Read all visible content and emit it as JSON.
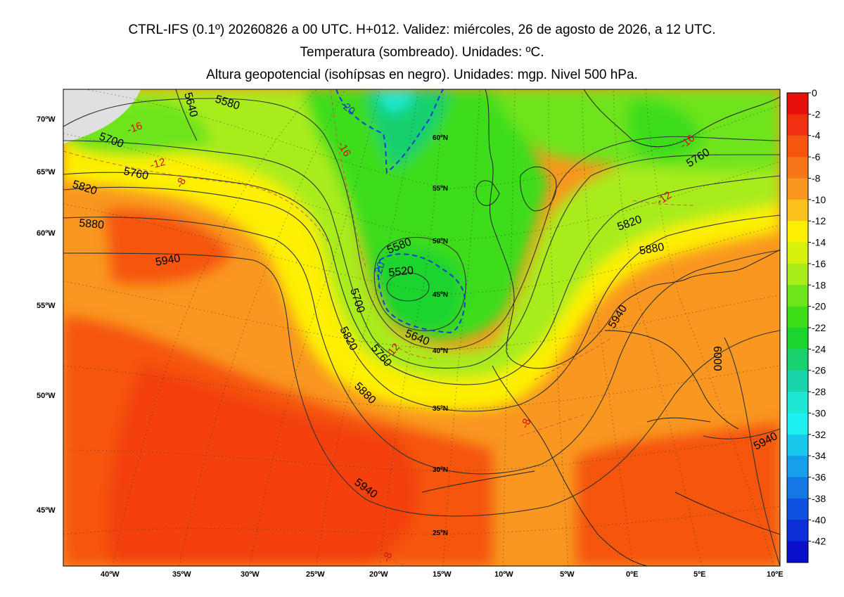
{
  "title": {
    "line1": "CTRL-IFS (0.1º) 20260826 a 00 UTC. H+012. Validez: miércoles, 26 de agosto de 2026, a 12 UTC.",
    "line2": "Temperatura (sombreado). Unidades: ºC.",
    "line3": "Altura geopotencial (isohípsas en negro). Unidades: mgp. Nivel 500 hPa."
  },
  "left_labels": [
    "70ºW",
    "65ºW",
    "60ºW",
    "55ºW",
    "50ºW",
    "45ºW"
  ],
  "bottom_labels": [
    "40ºW",
    "35ºW",
    "30ºW",
    "25ºW",
    "20ºW",
    "15ºW",
    "10ºW",
    "5ºW",
    "0ºE",
    "5ºE",
    "10ºE"
  ],
  "lat_labels": [
    "60ºN",
    "55ºN",
    "50ºN",
    "45ºN",
    "40ºN",
    "35ºN",
    "30ºN",
    "25ºN"
  ],
  "geopotential_labels": [
    "5580",
    "5640",
    "5700",
    "5760",
    "5820",
    "5880",
    "5940",
    "5520",
    "5580",
    "5700",
    "5820",
    "5760",
    "5640",
    "5880",
    "5940",
    "5760",
    "5820",
    "5880",
    "5940",
    "6000",
    "5940"
  ],
  "temperature_labels": [
    "-16",
    "-12",
    "-8",
    "-20",
    "-16",
    "-16",
    "-12",
    "-12",
    "-20",
    "-8",
    "-8"
  ],
  "colorbar": {
    "labels": [
      "0",
      "-2",
      "-4",
      "-6",
      "-8",
      "-10",
      "-12",
      "-14",
      "-16",
      "-18",
      "-20",
      "-22",
      "-24",
      "-26",
      "-28",
      "-30",
      "-32",
      "-34",
      "-36",
      "-38",
      "-40",
      "-42"
    ],
    "colors": [
      "#e8100a",
      "#f03010",
      "#f5550f",
      "#f7761a",
      "#f99720",
      "#fbc21c",
      "#fdf000",
      "#d4f20e",
      "#a8ec1a",
      "#6ee41c",
      "#3edd1a",
      "#1cd42e",
      "#18d06e",
      "#1ad4ac",
      "#1ee8d4",
      "#1ef0f0",
      "#1ac8ee",
      "#16a0ea",
      "#1478e4",
      "#1050e0",
      "#0c30d8",
      "#0810cc"
    ]
  }
}
